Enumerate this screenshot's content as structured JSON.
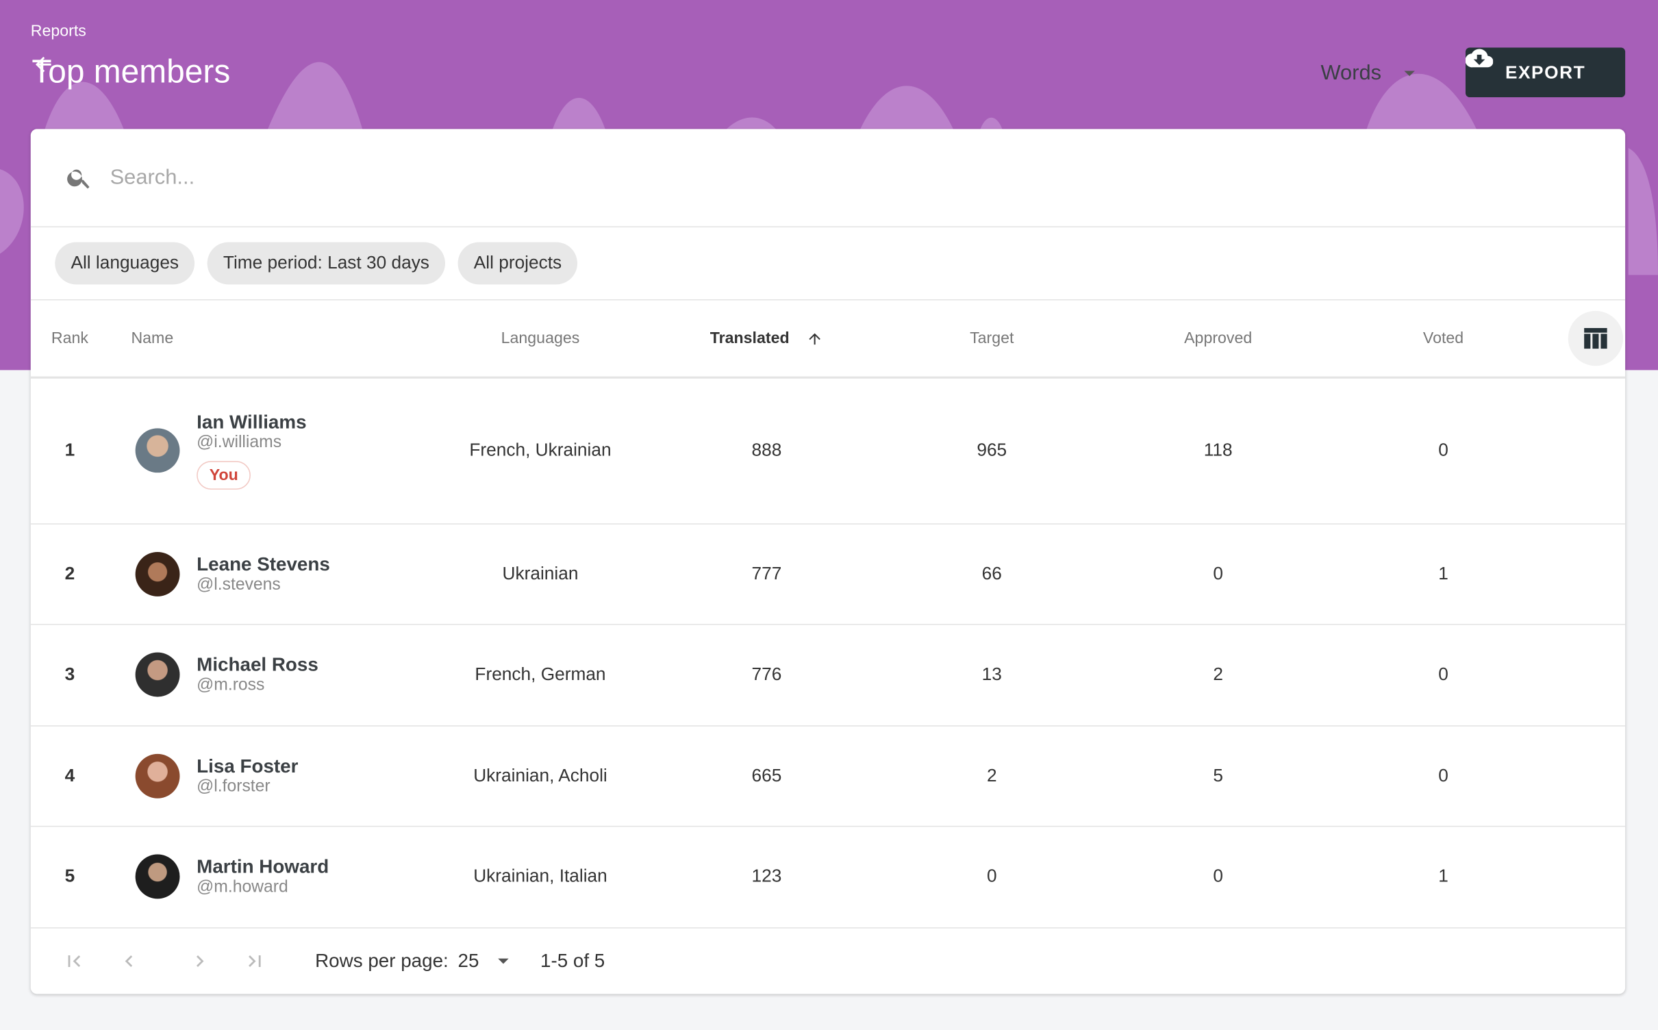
{
  "header": {
    "breadcrumb": "Reports",
    "title": "Top members",
    "metric_select": "Words",
    "export_label": "EXPORT",
    "background_color": "#a75fb8",
    "export_color": "#263238"
  },
  "search": {
    "placeholder": "Search...",
    "value": ""
  },
  "filters": [
    "All languages",
    "Time period: Last 30 days",
    "All projects"
  ],
  "table": {
    "columns": {
      "rank": "Rank",
      "name": "Name",
      "languages": "Languages",
      "translated": "Translated",
      "target": "Target",
      "approved": "Approved",
      "voted": "Voted"
    },
    "sort": {
      "column": "Translated",
      "direction": "ascending-arrow"
    },
    "rows": [
      {
        "rank": "1",
        "name": "Ian Williams",
        "username": "@i.williams",
        "badge": "You",
        "languages": "French, Ukrainian",
        "translated": "888",
        "target": "965",
        "approved": "118",
        "voted": "0"
      },
      {
        "rank": "2",
        "name": "Leane Stevens",
        "username": "@l.stevens",
        "languages": "Ukrainian",
        "translated": "777",
        "target": "66",
        "approved": "0",
        "voted": "1"
      },
      {
        "rank": "3",
        "name": "Michael Ross",
        "username": "@m.ross",
        "languages": "French, German",
        "translated": "776",
        "target": "13",
        "approved": "2",
        "voted": "0"
      },
      {
        "rank": "4",
        "name": "Lisa Foster",
        "username": "@l.forster",
        "languages": "Ukrainian, Acholi",
        "translated": "665",
        "target": "2",
        "approved": "5",
        "voted": "0"
      },
      {
        "rank": "5",
        "name": "Martin Howard",
        "username": "@m.howard",
        "languages": "Ukrainian, Italian",
        "translated": "123",
        "target": "0",
        "approved": "0",
        "voted": "1"
      }
    ]
  },
  "pagination": {
    "rows_per_page_label": "Rows per page:",
    "rows_per_page": "25",
    "range": "1-5 of 5"
  }
}
